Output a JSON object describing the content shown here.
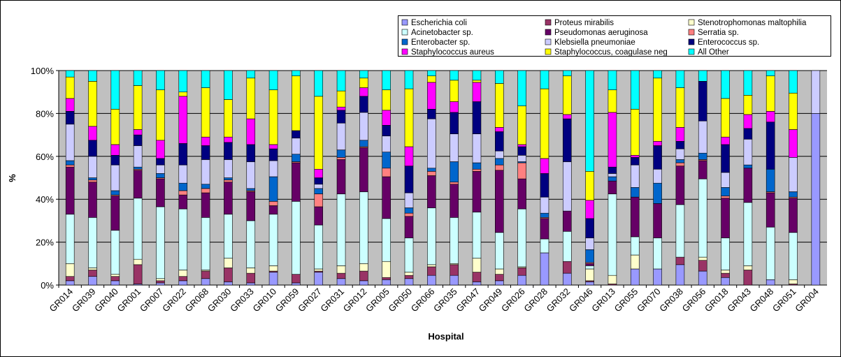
{
  "chart_data": {
    "type": "stacked_bar",
    "x_label": "Hospital",
    "y_label": "%",
    "categories": [
      "GR014",
      "GR039",
      "GR040",
      "GR001",
      "GR007",
      "GR022",
      "GR068",
      "GR030",
      "GR033",
      "GR010",
      "GR059",
      "GR027",
      "GR031",
      "GR012",
      "GR005",
      "GR050",
      "GR066",
      "GR035",
      "GR047",
      "GR049",
      "GR026",
      "GR028",
      "GR032",
      "GR046",
      "GR013",
      "GR055",
      "GR070",
      "GR038",
      "GR056",
      "GR018",
      "GR043",
      "GR048",
      "GR051",
      "GR004"
    ],
    "ylim": [
      0,
      100
    ],
    "yticks": [
      {
        "value": 0,
        "label": "0%"
      },
      {
        "value": 20,
        "label": "20%"
      },
      {
        "value": 40,
        "label": "40%"
      },
      {
        "value": 60,
        "label": "60%"
      },
      {
        "value": 80,
        "label": "80%"
      },
      {
        "value": 100,
        "label": "100%"
      }
    ],
    "grid": true,
    "legend": "top-right",
    "series": [
      {
        "name": "Escherichia coli",
        "color": "#9999ff",
        "values": [
          2,
          4,
          2,
          0.5,
          1,
          2,
          3,
          1.5,
          1,
          6,
          1,
          6,
          3,
          2,
          2.5,
          3,
          4.5,
          4.5,
          1.5,
          2,
          4.5,
          15,
          5.5,
          1.5,
          0,
          7.5,
          7.5,
          9.5,
          6.5,
          3.5,
          0,
          2.5,
          0,
          80
        ]
      },
      {
        "name": "Proteus mirabilis",
        "color": "#993366",
        "values": [
          2,
          3,
          2,
          9,
          1,
          2,
          3.5,
          6.5,
          4.5,
          0.5,
          4,
          0.5,
          2.5,
          4.5,
          1,
          1.5,
          4,
          5,
          4.5,
          3,
          3.5,
          0,
          5.5,
          0.5,
          0.5,
          0,
          0,
          3.5,
          5,
          2,
          7,
          0,
          0.5,
          0
        ]
      },
      {
        "name": "Stenotrophomonas maltophilia",
        "color": "#ffffcc",
        "values": [
          6,
          1,
          1,
          2.5,
          1,
          3,
          0.5,
          4.5,
          2.5,
          2.5,
          0,
          1,
          3.5,
          3.5,
          7.5,
          1.5,
          1,
          0.5,
          6.5,
          2.5,
          0.5,
          0,
          0,
          5.5,
          4,
          6.5,
          0,
          0,
          1.5,
          1.5,
          2,
          0,
          2,
          0
        ]
      },
      {
        "name": "Acinetobacter sp.",
        "color": "#ccffff",
        "values": [
          23,
          23.5,
          20.5,
          28.5,
          33.5,
          28.5,
          24.5,
          20.5,
          22,
          24,
          34,
          20.5,
          33.5,
          33.5,
          20,
          16,
          26.5,
          21.5,
          21.5,
          17,
          27,
          6.5,
          14,
          1.5,
          38,
          8.5,
          14.5,
          24.5,
          36.5,
          15,
          29.5,
          24.5,
          22,
          0
        ]
      },
      {
        "name": "Pseudomonas aeruginosa",
        "color": "#660066",
        "values": [
          22,
          16.5,
          16,
          13,
          13,
          6.5,
          11.5,
          15,
          13.5,
          4,
          18,
          8.5,
          16,
          20.5,
          19.5,
          10,
          15,
          15.5,
          19,
          29,
          14,
          9.5,
          9.5,
          1,
          6,
          18.5,
          16,
          18,
          8.5,
          18.5,
          16,
          16,
          16,
          0
        ]
      },
      {
        "name": "Serratia sp.",
        "color": "#ff8080",
        "values": [
          1,
          1,
          0.5,
          0.5,
          0.5,
          2,
          2,
          1,
          0.5,
          2,
          0.5,
          6,
          1,
          0.5,
          4,
          1.5,
          2,
          1,
          1,
          2.5,
          7.5,
          0.5,
          0,
          0.5,
          0,
          0,
          0,
          1.5,
          0.5,
          1,
          0,
          0.5,
          0.5,
          0
        ]
      },
      {
        "name": "Enterobacter sp.",
        "color": "#0066cc",
        "values": [
          2,
          1,
          2,
          1,
          2,
          3.5,
          2,
          1,
          1,
          11.5,
          3.5,
          2.5,
          3.5,
          3,
          7.5,
          2.5,
          1.5,
          9.5,
          3,
          3,
          0.5,
          2,
          0,
          6,
          2,
          4.5,
          9.5,
          1.5,
          3,
          4,
          1.5,
          10.5,
          2.5,
          0
        ]
      },
      {
        "name": "Klebsiella pneumoniae",
        "color": "#ccccff",
        "values": [
          17,
          10,
          12,
          10,
          4,
          8.5,
          11.5,
          8.5,
          12.5,
          7.5,
          7.5,
          2,
          12.5,
          13,
          7.5,
          7,
          23,
          13,
          13.5,
          3.5,
          3,
          7.5,
          23,
          5.5,
          1.5,
          10.5,
          6.5,
          5,
          15,
          7,
          12,
          0,
          16,
          20
        ]
      },
      {
        "name": "Enterococcus sp.",
        "color": "#000080",
        "values": [
          6,
          7.5,
          4.5,
          5,
          3,
          10,
          6.5,
          8,
          8,
          5.5,
          3.5,
          3,
          6,
          7.5,
          5,
          12.5,
          4.5,
          10,
          15,
          9,
          4,
          11,
          20,
          9,
          3,
          3.5,
          11,
          3.5,
          18.5,
          13,
          5,
          22,
          0,
          0
        ]
      },
      {
        "name": "Staphylococcus aureus",
        "color": "#ff00ff",
        "values": [
          6,
          6.5,
          5,
          2.5,
          8.5,
          22,
          4,
          2.5,
          12,
          2,
          0,
          4,
          1.5,
          4,
          7,
          9,
          12.5,
          5,
          9,
          2,
          1,
          7,
          2,
          8.5,
          25.5,
          1,
          2,
          6.5,
          0,
          3.5,
          6.5,
          5,
          13,
          0
        ]
      },
      {
        "name": "Staphylococcus, coagulase neg",
        "color": "#ffff00",
        "values": [
          10,
          21,
          16.5,
          20.5,
          23.5,
          2,
          23,
          17.5,
          19,
          25.5,
          25.5,
          34,
          7.5,
          4.5,
          9.5,
          27,
          3,
          10,
          1,
          20.5,
          18,
          32.5,
          18,
          13.5,
          10.5,
          21.5,
          29.5,
          18.5,
          0,
          18,
          9,
          16.5,
          17,
          0
        ]
      },
      {
        "name": "All Other",
        "color": "#00ffff",
        "values": [
          3,
          5,
          18,
          7,
          9,
          10,
          8,
          13.5,
          3.5,
          9,
          2.5,
          12,
          9.5,
          3.5,
          9,
          8.5,
          2.5,
          4.5,
          4.5,
          6,
          16.5,
          8.5,
          2.5,
          47,
          9,
          18,
          3.5,
          8,
          5,
          13,
          11.5,
          2.5,
          10.5,
          0
        ]
      }
    ]
  }
}
